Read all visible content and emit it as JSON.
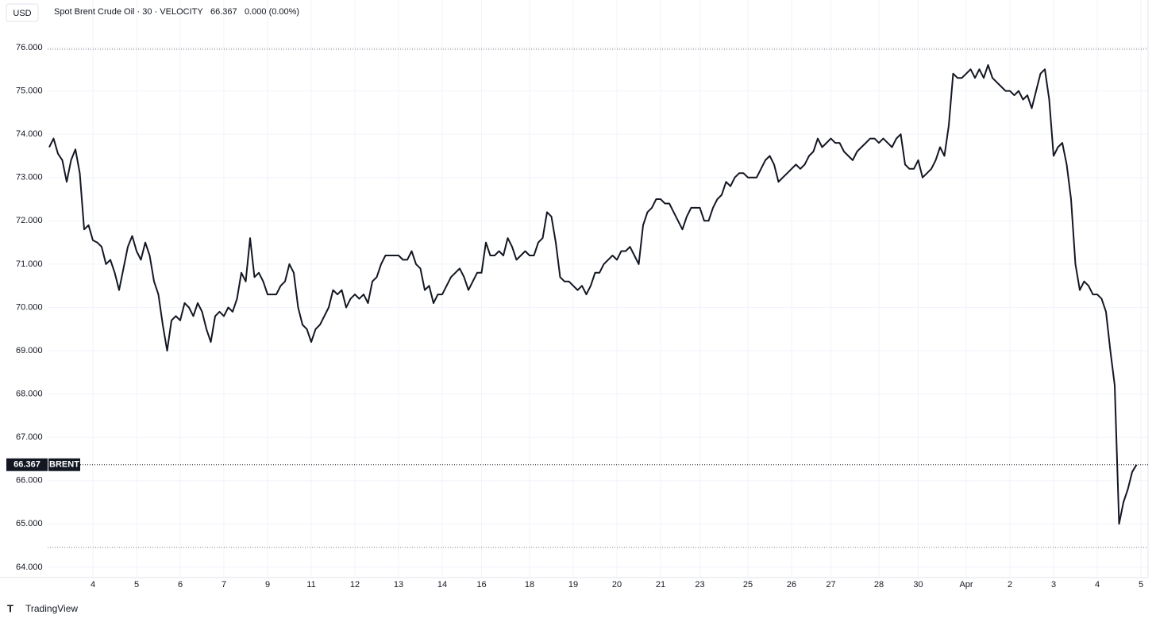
{
  "chart_data": {
    "type": "line",
    "currency": "USD",
    "title": "Spot Brent Crude Oil · 30 · VELOCITY",
    "change": "0.000 (0.00%)",
    "series_label": "BRENT",
    "color": "#131722",
    "grid": true,
    "ylim": [
      63.76,
      77.1
    ],
    "yticks": [
      {
        "value": 64,
        "label": "64.000"
      },
      {
        "value": 65,
        "label": "65.000"
      },
      {
        "value": 66,
        "label": "66.000"
      },
      {
        "value": 67,
        "label": "67.000"
      },
      {
        "value": 68,
        "label": "68.000"
      },
      {
        "value": 69,
        "label": "69.000"
      },
      {
        "value": 70,
        "label": "70.000"
      },
      {
        "value": 71,
        "label": "71.000"
      },
      {
        "value": 72,
        "label": "72.000"
      },
      {
        "value": 73,
        "label": "73.000"
      },
      {
        "value": 74,
        "label": "74.000"
      },
      {
        "value": 75,
        "label": "75.000"
      },
      {
        "value": 76,
        "label": "76.000"
      }
    ],
    "categories": [
      null,
      null,
      null,
      null,
      null,
      null,
      null,
      null,
      null,
      null,
      "4",
      null,
      null,
      null,
      null,
      null,
      null,
      null,
      null,
      null,
      "5",
      null,
      null,
      null,
      null,
      null,
      null,
      null,
      null,
      null,
      "6",
      null,
      null,
      null,
      null,
      null,
      null,
      null,
      null,
      null,
      "7",
      null,
      null,
      null,
      null,
      null,
      null,
      null,
      null,
      null,
      "9",
      null,
      null,
      null,
      null,
      null,
      null,
      null,
      null,
      null,
      "11",
      null,
      null,
      null,
      null,
      null,
      null,
      null,
      null,
      null,
      "12",
      null,
      null,
      null,
      null,
      null,
      null,
      null,
      null,
      null,
      "13",
      null,
      null,
      null,
      null,
      null,
      null,
      null,
      null,
      null,
      "14",
      null,
      null,
      null,
      null,
      null,
      null,
      null,
      null,
      "16",
      null,
      null,
      null,
      null,
      null,
      null,
      null,
      null,
      null,
      null,
      "18",
      null,
      null,
      null,
      null,
      null,
      null,
      null,
      null,
      null,
      "19",
      null,
      null,
      null,
      null,
      null,
      null,
      null,
      null,
      null,
      "20",
      null,
      null,
      null,
      null,
      null,
      null,
      null,
      null,
      null,
      "21",
      null,
      null,
      null,
      null,
      null,
      null,
      null,
      null,
      "23",
      null,
      null,
      null,
      null,
      null,
      null,
      null,
      null,
      null,
      null,
      "25",
      null,
      null,
      null,
      null,
      null,
      null,
      null,
      null,
      null,
      "26",
      null,
      null,
      null,
      null,
      null,
      null,
      null,
      null,
      "27",
      null,
      null,
      null,
      null,
      null,
      null,
      null,
      null,
      null,
      null,
      "28",
      null,
      null,
      null,
      null,
      null,
      null,
      null,
      null,
      "30",
      null,
      null,
      null,
      null,
      null,
      null,
      null,
      null,
      null,
      null,
      "Apr",
      null,
      null,
      null,
      null,
      null,
      null,
      null,
      null,
      null,
      "2",
      null,
      null,
      null,
      null,
      null,
      null,
      null,
      null,
      null,
      "3",
      null,
      null,
      null,
      null,
      null,
      null,
      null,
      null,
      null,
      "4",
      null,
      null,
      null,
      null,
      null,
      null,
      null,
      null,
      null,
      "5"
    ],
    "values": [
      73.7,
      73.9,
      73.55,
      73.4,
      72.9,
      73.4,
      73.65,
      73.1,
      71.8,
      71.9,
      71.55,
      71.5,
      71.4,
      71.0,
      71.1,
      70.8,
      70.4,
      70.9,
      71.4,
      71.65,
      71.3,
      71.1,
      71.5,
      71.2,
      70.6,
      70.3,
      69.6,
      69.0,
      69.7,
      69.8,
      69.7,
      70.1,
      70.0,
      69.8,
      70.1,
      69.9,
      69.5,
      69.2,
      69.8,
      69.9,
      69.8,
      70.0,
      69.9,
      70.2,
      70.8,
      70.6,
      71.6,
      70.7,
      70.8,
      70.6,
      70.3,
      70.3,
      70.3,
      70.5,
      70.6,
      71.0,
      70.8,
      70.0,
      69.6,
      69.5,
      69.2,
      69.5,
      69.6,
      69.8,
      70.0,
      70.4,
      70.3,
      70.4,
      70.0,
      70.2,
      70.3,
      70.2,
      70.3,
      70.1,
      70.6,
      70.7,
      71.0,
      71.2,
      71.2,
      71.2,
      71.2,
      71.1,
      71.1,
      71.3,
      71.0,
      70.9,
      70.4,
      70.5,
      70.1,
      70.3,
      70.3,
      70.5,
      70.7,
      70.8,
      70.9,
      70.7,
      70.4,
      70.6,
      70.8,
      70.8,
      71.5,
      71.2,
      71.2,
      71.3,
      71.2,
      71.6,
      71.4,
      71.1,
      71.2,
      71.3,
      71.2,
      71.2,
      71.5,
      71.6,
      72.2,
      72.1,
      71.5,
      70.7,
      70.6,
      70.6,
      70.5,
      70.4,
      70.5,
      70.3,
      70.5,
      70.8,
      70.8,
      71.0,
      71.1,
      71.2,
      71.1,
      71.3,
      71.3,
      71.4,
      71.2,
      71.0,
      71.9,
      72.2,
      72.3,
      72.5,
      72.5,
      72.4,
      72.4,
      72.2,
      72.0,
      71.8,
      72.1,
      72.3,
      72.3,
      72.3,
      72.0,
      72.0,
      72.3,
      72.5,
      72.6,
      72.9,
      72.8,
      73.0,
      73.1,
      73.1,
      73.0,
      73.0,
      73.0,
      73.2,
      73.4,
      73.5,
      73.3,
      72.9,
      73.0,
      73.1,
      73.2,
      73.3,
      73.2,
      73.3,
      73.5,
      73.6,
      73.9,
      73.7,
      73.8,
      73.9,
      73.8,
      73.8,
      73.6,
      73.5,
      73.4,
      73.6,
      73.7,
      73.8,
      73.9,
      73.9,
      73.8,
      73.9,
      73.8,
      73.7,
      73.9,
      74.0,
      73.3,
      73.2,
      73.2,
      73.4,
      73.0,
      73.1,
      73.2,
      73.4,
      73.7,
      73.5,
      74.2,
      75.4,
      75.3,
      75.3,
      75.4,
      75.5,
      75.3,
      75.5,
      75.3,
      75.6,
      75.3,
      75.2,
      75.1,
      75.0,
      75.0,
      74.9,
      75.0,
      74.8,
      74.9,
      74.6,
      75.0,
      75.4,
      75.5,
      74.8,
      73.5,
      73.7,
      73.8,
      73.3,
      72.5,
      71.0,
      70.4,
      70.6,
      70.5,
      70.3,
      70.3,
      70.2,
      69.9,
      69.0,
      68.2,
      65.0,
      65.5,
      65.8,
      66.2,
      66.367,
      null
    ]
  },
  "footer": {
    "brand": "TradingView"
  }
}
